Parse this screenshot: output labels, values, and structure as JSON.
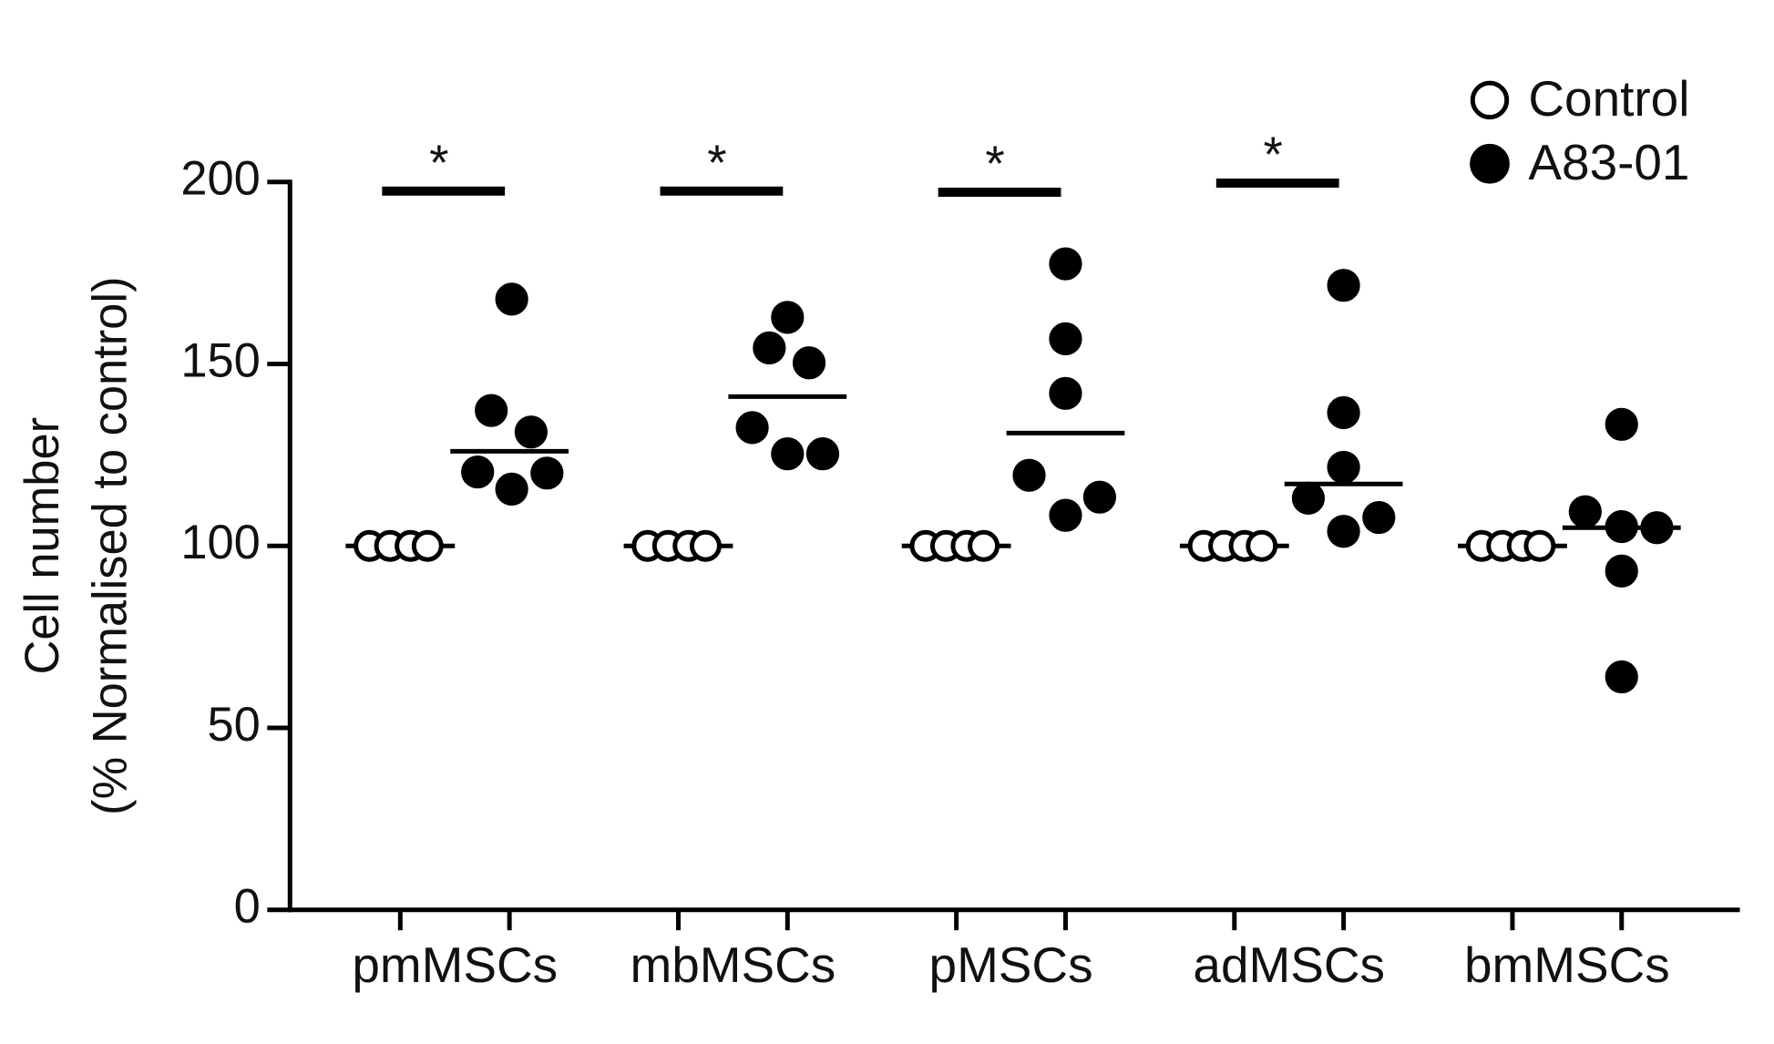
{
  "chart_data": {
    "type": "dotplot",
    "ylabel": [
      "Cell number",
      "(% Normalised to control)"
    ],
    "categories": [
      "pmMSCs",
      "mbMSCs",
      "pMSCs",
      "adMSCs",
      "bmMSCs"
    ],
    "ylim": [
      0,
      200
    ],
    "yticks": [
      0,
      50,
      100,
      150,
      200
    ],
    "legend": "top-right",
    "significance_labels": [
      "*",
      "*",
      "*",
      "*",
      null
    ],
    "series": [
      {
        "name": "Control",
        "color": "#ffffff",
        "values": [
          [
            100,
            100,
            100,
            100
          ],
          [
            100,
            100,
            100,
            100
          ],
          [
            100,
            100,
            100,
            100
          ],
          [
            100,
            100,
            100,
            100
          ],
          [
            100,
            100,
            100,
            100
          ]
        ],
        "means": [
          100,
          100,
          100,
          100,
          100
        ]
      },
      {
        "name": "A83-01",
        "color": "#000000",
        "values": [
          [
            167.8,
            137.2,
            131.3,
            120.3,
            115.6,
            120
          ],
          [
            162.8,
            154.4,
            150.3,
            132.5,
            125.3,
            125.3
          ],
          [
            177.5,
            156.9,
            141.9,
            119.4,
            113.4,
            108.4
          ],
          [
            171.6,
            136.6,
            121.6,
            113.1,
            107.8,
            104
          ],
          [
            133.4,
            109.4,
            105.3,
            105,
            93.1,
            64
          ]
        ],
        "means": [
          126,
          141,
          131,
          117,
          105
        ]
      }
    ]
  }
}
